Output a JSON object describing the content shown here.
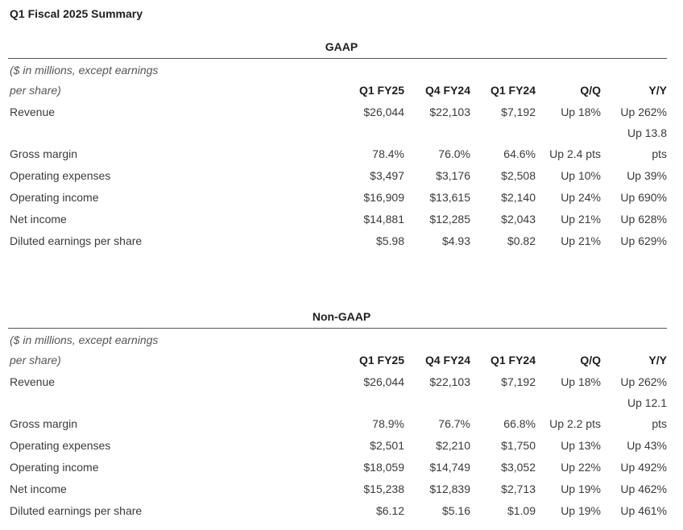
{
  "title": "Q1 Fiscal 2025 Summary",
  "note_line1": "($ in millions, except earnings",
  "note_line2": "per share)",
  "columns": [
    "Q1 FY25",
    "Q4 FY24",
    "Q1 FY24",
    "Q/Q",
    "Y/Y"
  ],
  "gaap": {
    "heading": "GAAP",
    "rows": [
      {
        "label": "Revenue",
        "values": [
          "$26,044",
          "$22,103",
          "$7,192",
          "Up 18%",
          "Up 262%"
        ]
      },
      {
        "label": "Gross margin",
        "values": [
          "78.4%",
          "76.0%",
          "64.6%",
          "Up 2.4 pts",
          "Up 13.8 pts"
        ],
        "yy_line1": "Up 13.8",
        "yy_line2": "pts"
      },
      {
        "label": "Operating expenses",
        "values": [
          "$3,497",
          "$3,176",
          "$2,508",
          "Up 10%",
          "Up 39%"
        ]
      },
      {
        "label": "Operating income",
        "values": [
          "$16,909",
          "$13,615",
          "$2,140",
          "Up 24%",
          "Up 690%"
        ]
      },
      {
        "label": "Net income",
        "values": [
          "$14,881",
          "$12,285",
          "$2,043",
          "Up 21%",
          "Up 628%"
        ]
      },
      {
        "label": "Diluted earnings per share",
        "values": [
          "$5.98",
          "$4.93",
          "$0.82",
          "Up 21%",
          "Up 629%"
        ]
      }
    ]
  },
  "non_gaap": {
    "heading": "Non-GAAP",
    "rows": [
      {
        "label": "Revenue",
        "values": [
          "$26,044",
          "$22,103",
          "$7,192",
          "Up 18%",
          "Up 262%"
        ]
      },
      {
        "label": "Gross margin",
        "values": [
          "78.9%",
          "76.7%",
          "66.8%",
          "Up 2.2 pts",
          "Up 12.1 pts"
        ],
        "yy_line1": "Up 12.1",
        "yy_line2": "pts"
      },
      {
        "label": "Operating expenses",
        "values": [
          "$2,501",
          "$2,210",
          "$1,750",
          "Up 13%",
          "Up 43%"
        ]
      },
      {
        "label": "Operating income",
        "values": [
          "$18,059",
          "$14,749",
          "$3,052",
          "Up 22%",
          "Up 492%"
        ]
      },
      {
        "label": "Net income",
        "values": [
          "$15,238",
          "$12,839",
          "$2,713",
          "Up 19%",
          "Up 462%"
        ]
      },
      {
        "label": "Diluted earnings per share",
        "values": [
          "$6.12",
          "$5.16",
          "$1.09",
          "Up 19%",
          "Up 461%"
        ]
      }
    ]
  }
}
